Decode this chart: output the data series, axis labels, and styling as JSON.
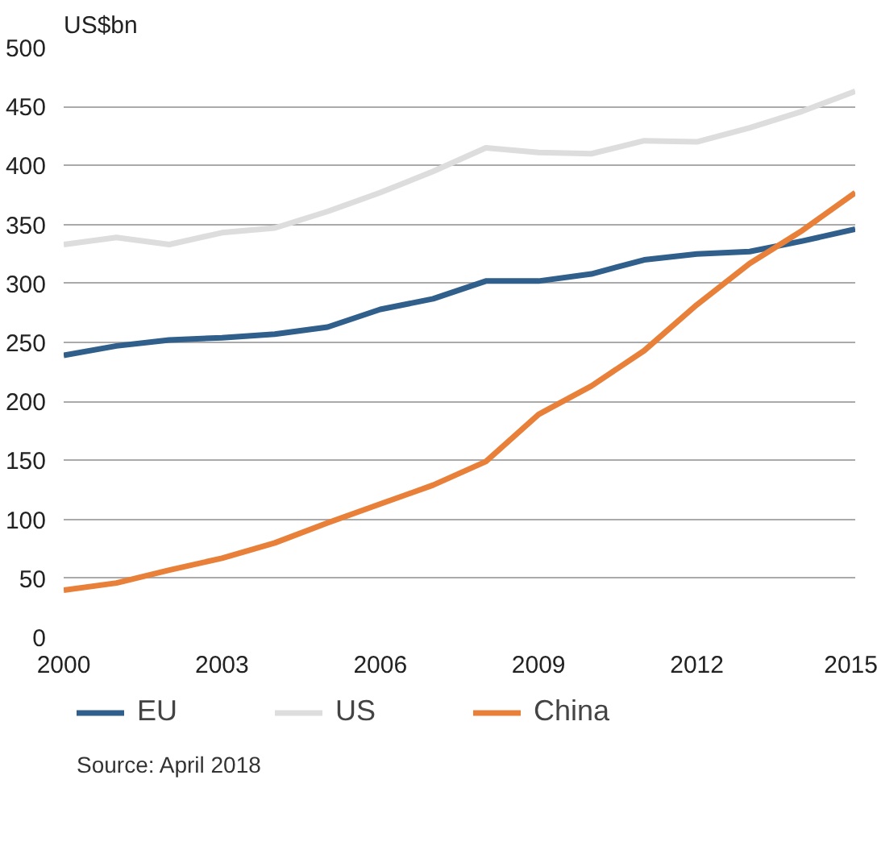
{
  "chart_data": {
    "type": "line",
    "ylabel": "US$bn",
    "x": [
      2000,
      2001,
      2002,
      2003,
      2004,
      2005,
      2006,
      2007,
      2008,
      2009,
      2010,
      2011,
      2012,
      2013,
      2014,
      2015
    ],
    "xlim": [
      2000,
      2015
    ],
    "xticks": [
      2000,
      2003,
      2006,
      2009,
      2012,
      2015
    ],
    "ylim": [
      0,
      500
    ],
    "yticks": [
      0,
      50,
      100,
      150,
      200,
      250,
      300,
      350,
      400,
      450,
      500
    ],
    "grid": "y",
    "legend": "bottom",
    "marker": "none",
    "line_style": "solid",
    "series": [
      {
        "name": "EU",
        "color": "#2f5f8a",
        "values": [
          239,
          247,
          252,
          254,
          257,
          263,
          278,
          287,
          302,
          302,
          308,
          320,
          325,
          327,
          336,
          346
        ]
      },
      {
        "name": "US",
        "color": "#dddddd",
        "values": [
          333,
          339,
          333,
          343,
          347,
          361,
          377,
          395,
          415,
          411,
          410,
          421,
          420,
          432,
          446,
          463
        ]
      },
      {
        "name": "China",
        "color": "#e8803a",
        "values": [
          40,
          46,
          57,
          67,
          80,
          97,
          113,
          129,
          149,
          189,
          213,
          243,
          282,
          317,
          345,
          377
        ]
      }
    ],
    "annotations": [
      "Source: April 2018"
    ]
  }
}
